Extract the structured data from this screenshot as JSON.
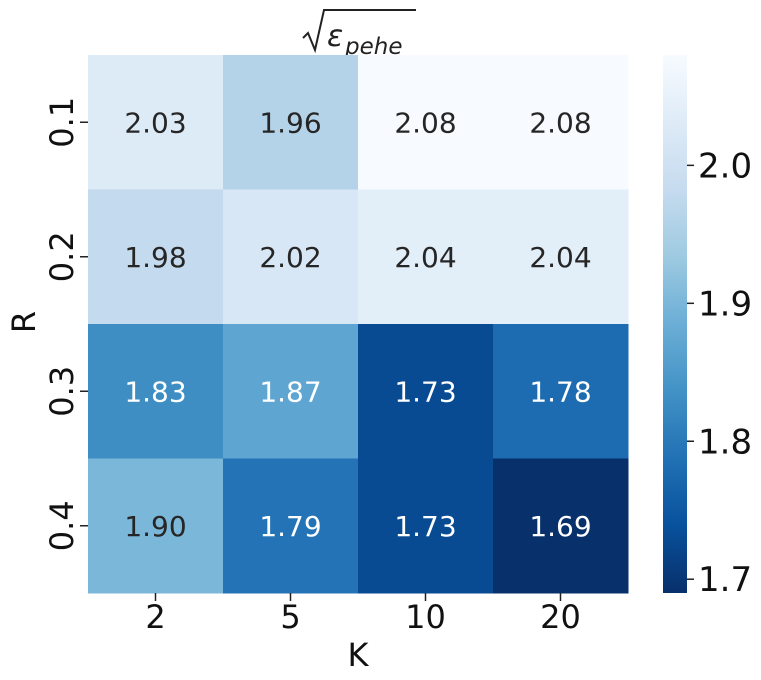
{
  "chart_data": {
    "type": "heatmap",
    "title": "√ε_pehe",
    "xlabel": "K",
    "ylabel": "R",
    "x_categories": [
      "2",
      "5",
      "10",
      "20"
    ],
    "y_categories": [
      "0.1",
      "0.2",
      "0.3",
      "0.4"
    ],
    "values": [
      [
        2.03,
        1.96,
        2.08,
        2.08
      ],
      [
        1.98,
        2.02,
        2.04,
        2.04
      ],
      [
        1.83,
        1.87,
        1.73,
        1.78
      ],
      [
        1.9,
        1.79,
        1.73,
        1.69
      ]
    ],
    "value_labels": [
      [
        "2.03",
        "1.96",
        "2.08",
        "2.08"
      ],
      [
        "1.98",
        "2.02",
        "2.04",
        "2.04"
      ],
      [
        "1.83",
        "1.87",
        "1.73",
        "1.78"
      ],
      [
        "1.90",
        "1.79",
        "1.73",
        "1.69"
      ]
    ],
    "colormap": "Blues_r",
    "vmin": 1.69,
    "vmax": 2.08,
    "colorbar": {
      "ticks": [
        1.7,
        1.8,
        1.9,
        2.0
      ],
      "tick_labels": [
        "1.7",
        "1.8",
        "1.9",
        "2.0"
      ]
    },
    "annotations": true,
    "grid": false,
    "legend": "colorbar-right"
  }
}
